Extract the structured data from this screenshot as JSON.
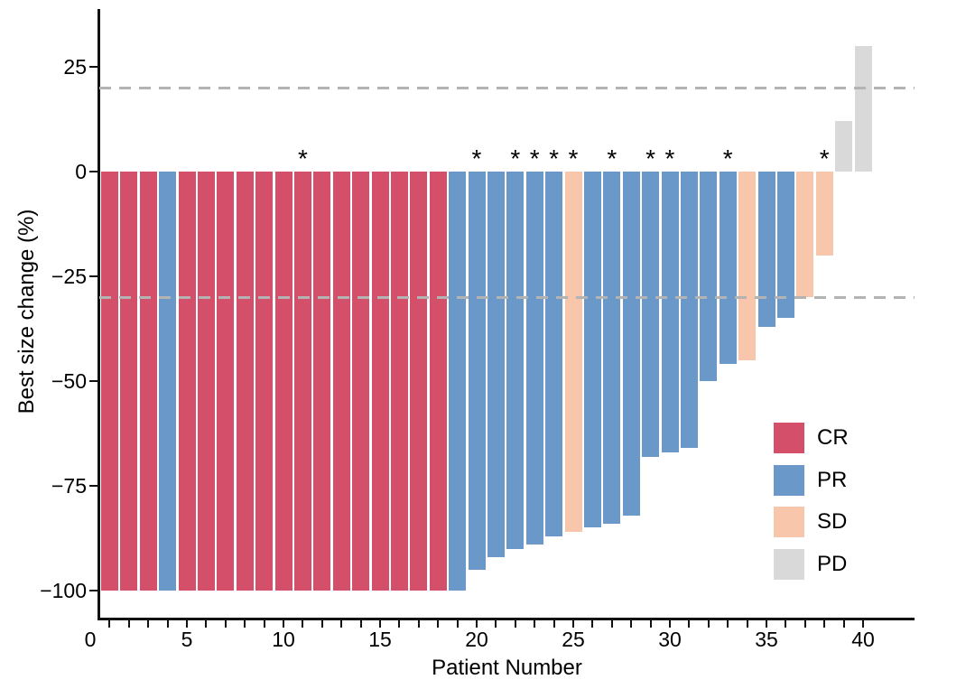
{
  "chart_data": {
    "type": "bar",
    "title": "",
    "xlabel": "Patient Number",
    "ylabel": "Best size change (%)",
    "x_axis": {
      "tick_labels": [
        0,
        5,
        10,
        15,
        20,
        25,
        30,
        35,
        40
      ],
      "minor_ticks_every": 1,
      "range": [
        0,
        42
      ]
    },
    "y_axis": {
      "tick_labels": [
        25,
        0,
        -25,
        -50,
        -75,
        -100
      ],
      "range": [
        -106,
        39
      ]
    },
    "reference_lines": {
      "style": "dashed",
      "color": "#b3b3b3",
      "values": [
        20,
        -30
      ]
    },
    "legend": {
      "position": "inside-right",
      "items": [
        {
          "label": "CR",
          "color": "#d4506a"
        },
        {
          "label": "PR",
          "color": "#6a98c8"
        },
        {
          "label": "SD",
          "color": "#f8c6ab"
        },
        {
          "label": "PD",
          "color": "#d9d9d9"
        }
      ]
    },
    "annotation_symbol": "*",
    "series": [
      {
        "patient": 1,
        "value": -100,
        "response": "CR",
        "star": false
      },
      {
        "patient": 2,
        "value": -100,
        "response": "CR",
        "star": false
      },
      {
        "patient": 3,
        "value": -100,
        "response": "CR",
        "star": false
      },
      {
        "patient": 4,
        "value": -100,
        "response": "PR",
        "star": false
      },
      {
        "patient": 5,
        "value": -100,
        "response": "CR",
        "star": false
      },
      {
        "patient": 6,
        "value": -100,
        "response": "CR",
        "star": false
      },
      {
        "patient": 7,
        "value": -100,
        "response": "CR",
        "star": false
      },
      {
        "patient": 8,
        "value": -100,
        "response": "CR",
        "star": false
      },
      {
        "patient": 9,
        "value": -100,
        "response": "CR",
        "star": false
      },
      {
        "patient": 10,
        "value": -100,
        "response": "CR",
        "star": false
      },
      {
        "patient": 11,
        "value": -100,
        "response": "CR",
        "star": true
      },
      {
        "patient": 12,
        "value": -100,
        "response": "CR",
        "star": false
      },
      {
        "patient": 13,
        "value": -100,
        "response": "CR",
        "star": false
      },
      {
        "patient": 14,
        "value": -100,
        "response": "CR",
        "star": false
      },
      {
        "patient": 15,
        "value": -100,
        "response": "CR",
        "star": false
      },
      {
        "patient": 16,
        "value": -100,
        "response": "CR",
        "star": false
      },
      {
        "patient": 17,
        "value": -100,
        "response": "CR",
        "star": false
      },
      {
        "patient": 18,
        "value": -100,
        "response": "CR",
        "star": false
      },
      {
        "patient": 19,
        "value": -100,
        "response": "PR",
        "star": false
      },
      {
        "patient": 20,
        "value": -95,
        "response": "PR",
        "star": true
      },
      {
        "patient": 21,
        "value": -92,
        "response": "PR",
        "star": false
      },
      {
        "patient": 22,
        "value": -90,
        "response": "PR",
        "star": true
      },
      {
        "patient": 23,
        "value": -89,
        "response": "PR",
        "star": true
      },
      {
        "patient": 24,
        "value": -87,
        "response": "PR",
        "star": true
      },
      {
        "patient": 25,
        "value": -86,
        "response": "SD",
        "star": true
      },
      {
        "patient": 26,
        "value": -85,
        "response": "PR",
        "star": false
      },
      {
        "patient": 27,
        "value": -84,
        "response": "PR",
        "star": true
      },
      {
        "patient": 28,
        "value": -82,
        "response": "PR",
        "star": false
      },
      {
        "patient": 29,
        "value": -68,
        "response": "PR",
        "star": true
      },
      {
        "patient": 30,
        "value": -67,
        "response": "PR",
        "star": true
      },
      {
        "patient": 31,
        "value": -66,
        "response": "PR",
        "star": false
      },
      {
        "patient": 32,
        "value": -50,
        "response": "PR",
        "star": false
      },
      {
        "patient": 33,
        "value": -46,
        "response": "PR",
        "star": true
      },
      {
        "patient": 34,
        "value": -45,
        "response": "SD",
        "star": false
      },
      {
        "patient": 35,
        "value": -37,
        "response": "PR",
        "star": false
      },
      {
        "patient": 36,
        "value": -35,
        "response": "PR",
        "star": false
      },
      {
        "patient": 37,
        "value": -30,
        "response": "SD",
        "star": false
      },
      {
        "patient": 38,
        "value": -20,
        "response": "SD",
        "star": true
      },
      {
        "patient": 39,
        "value": 12,
        "response": "PD",
        "star": false
      },
      {
        "patient": 40,
        "value": 30,
        "response": "PD",
        "star": false
      }
    ]
  },
  "colors": {
    "background": "#ffffff",
    "axis": "#111111",
    "text": "#000000"
  }
}
